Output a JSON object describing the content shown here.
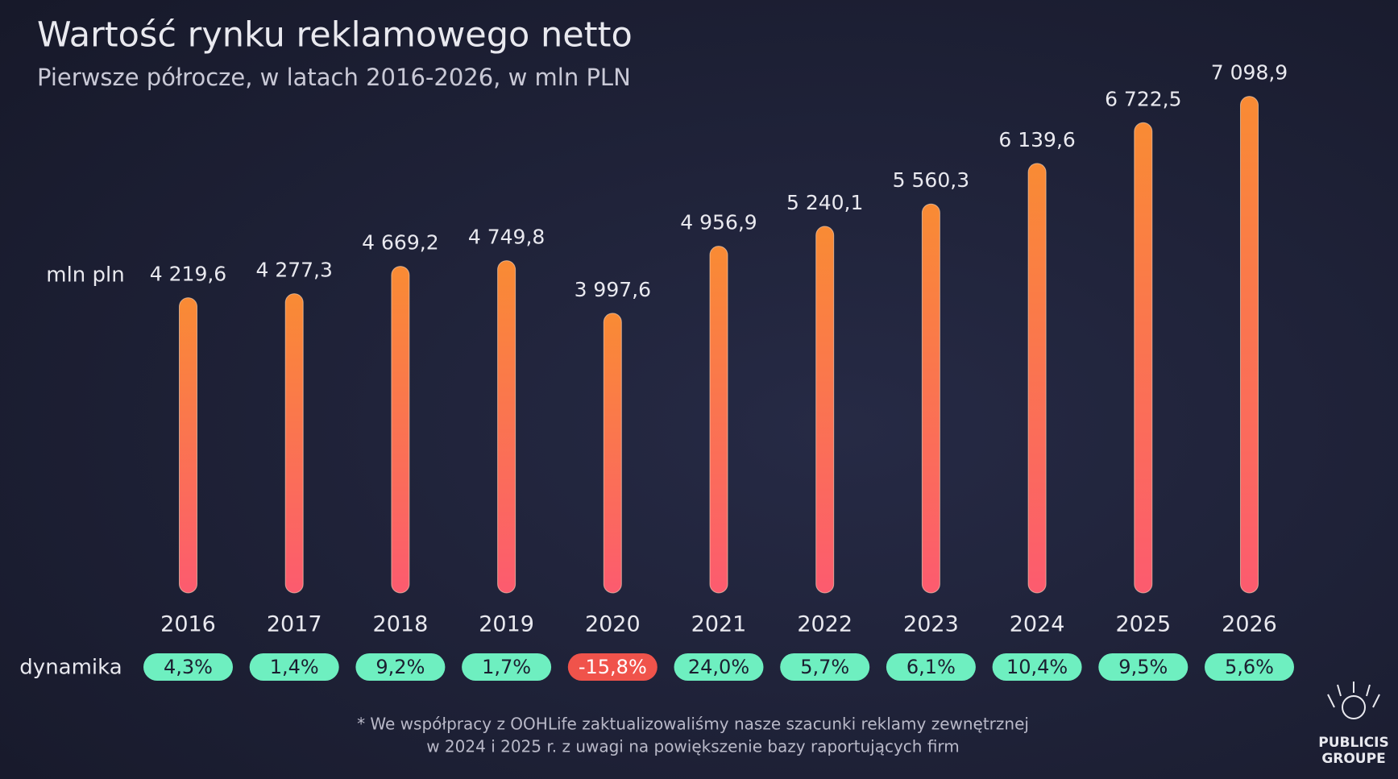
{
  "chart_data": {
    "type": "bar",
    "title": "Wartość rynku reklamowego netto",
    "subtitle": "Pierwsze półrocze, w latach 2016-2026, w mln PLN",
    "y_label": "mln pln",
    "categories": [
      "2016",
      "2017",
      "2018",
      "2019",
      "2020",
      "2021",
      "2022",
      "2023",
      "2024",
      "2025",
      "2026"
    ],
    "values": [
      4219.6,
      4277.3,
      4669.2,
      4749.8,
      3997.6,
      4956.9,
      5240.1,
      5560.3,
      6139.6,
      6722.5,
      7098.9
    ],
    "value_labels": [
      "4 219,6",
      "4 277,3",
      "4 669,2",
      "4 749,8",
      "3 997,6",
      "4 956,9",
      "5 240,1",
      "5 560,3",
      "6 139,6",
      "6 722,5",
      "7 098,9"
    ],
    "gradient": [
      "#f98b34",
      "#fc5b6f"
    ],
    "ylim": [
      0,
      7100
    ],
    "dynamics": {
      "label": "dynamika",
      "values": [
        4.3,
        1.4,
        9.2,
        1.7,
        -15.8,
        24.0,
        5.7,
        6.1,
        10.4,
        9.5,
        5.6
      ],
      "value_labels": [
        "4,3%",
        "1,4%",
        "9,2%",
        "1,7%",
        "-15,8%",
        "24,0%",
        "5,7%",
        "6,1%",
        "10,4%",
        "9,5%",
        "5,6%"
      ],
      "positive_color": "#6eefc0",
      "negative_color": "#f0534b"
    },
    "footnote": [
      "* We współpracy z OOHLife zaktualizowaliśmy nasze szacunki reklamy zewnętrznej",
      "w 2024 i 2025 r. z uwagi na powiększenie bazy raportujących firm"
    ],
    "logo": [
      "PUBLICIS",
      "GROUPE"
    ]
  }
}
